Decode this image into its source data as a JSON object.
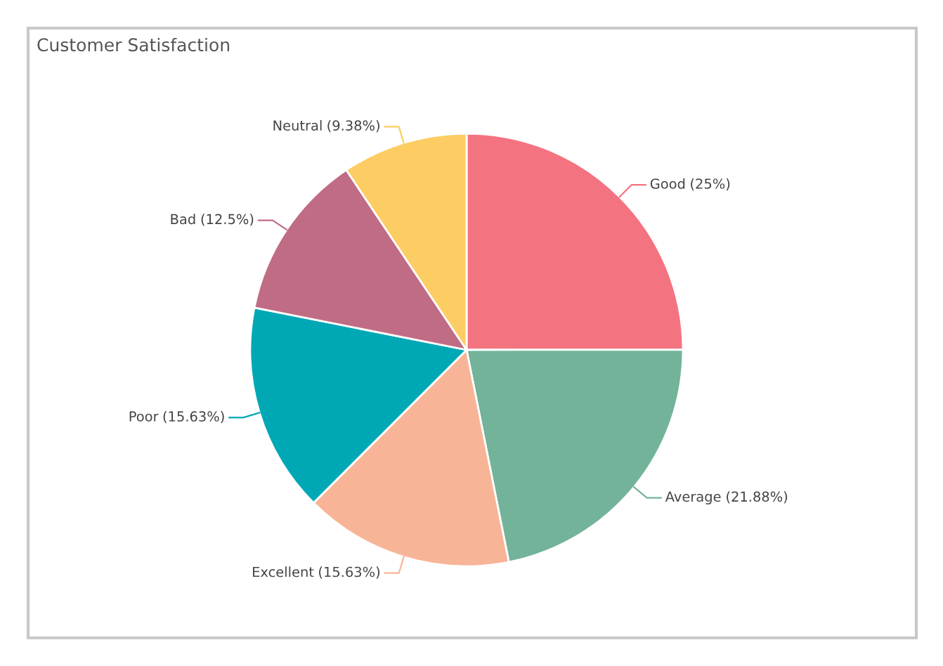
{
  "chart_data": {
    "type": "pie",
    "title": "Customer Satisfaction",
    "categories": [
      "Good",
      "Average",
      "Excellent",
      "Poor",
      "Bad",
      "Neutral"
    ],
    "values": [
      25,
      21.88,
      15.63,
      15.63,
      12.5,
      9.38
    ],
    "colors": [
      "#f47381",
      "#73b39a",
      "#f8b497",
      "#00a8b5",
      "#c06c84",
      "#fdcc62"
    ],
    "value_labels": [
      "(25%)",
      "(21.88%)",
      "(15.63%)",
      "(15.63%)",
      "(12.5%)",
      "(9.38%)"
    ],
    "legend": false
  }
}
